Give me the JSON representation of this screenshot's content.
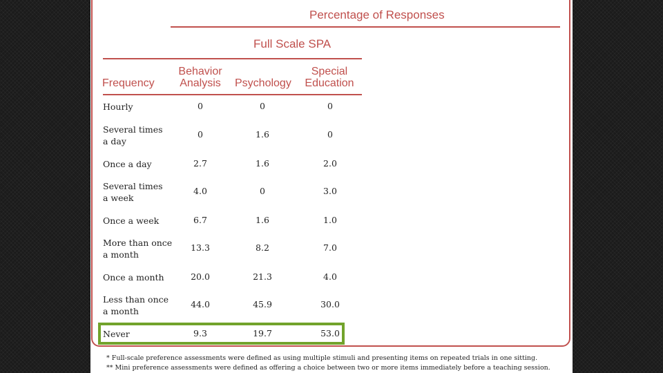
{
  "table": {
    "header_group": "Percentage of Responses",
    "subheader": "Full Scale SPA",
    "columns": {
      "frequency": "Frequency",
      "behavior_analysis": "Behavior\nAnalysis",
      "psychology": "Psychology",
      "special_education": "Special\nEducation"
    },
    "rows": [
      {
        "label": "Hourly",
        "ba": "0",
        "psy": "0",
        "sped": "0"
      },
      {
        "label": "Several times\na day",
        "ba": "0",
        "psy": "1.6",
        "sped": "0"
      },
      {
        "label": "Once a day",
        "ba": "2.7",
        "psy": "1.6",
        "sped": "2.0"
      },
      {
        "label": "Several times\na week",
        "ba": "4.0",
        "psy": "0",
        "sped": "3.0"
      },
      {
        "label": "Once a week",
        "ba": "6.7",
        "psy": "1.6",
        "sped": "1.0"
      },
      {
        "label": "More than once\na month",
        "ba": "13.3",
        "psy": "8.2",
        "sped": "7.0"
      },
      {
        "label": "Once a month",
        "ba": "20.0",
        "psy": "21.3",
        "sped": "4.0"
      },
      {
        "label": "Less than once\na month",
        "ba": "44.0",
        "psy": "45.9",
        "sped": "30.0"
      },
      {
        "label": "Never",
        "ba": "9.3",
        "psy": "19.7",
        "sped": "53.0"
      }
    ]
  },
  "footnotes": [
    "* Full-scale preference assessments were defined as using multiple stimuli and presenting items on repeated trials in one sitting.",
    "** Mini preference assessments were defined as offering a choice between two or more items immediately before a teaching session."
  ],
  "colors": {
    "accent": "#c0504d",
    "highlight": "#72a32c"
  }
}
